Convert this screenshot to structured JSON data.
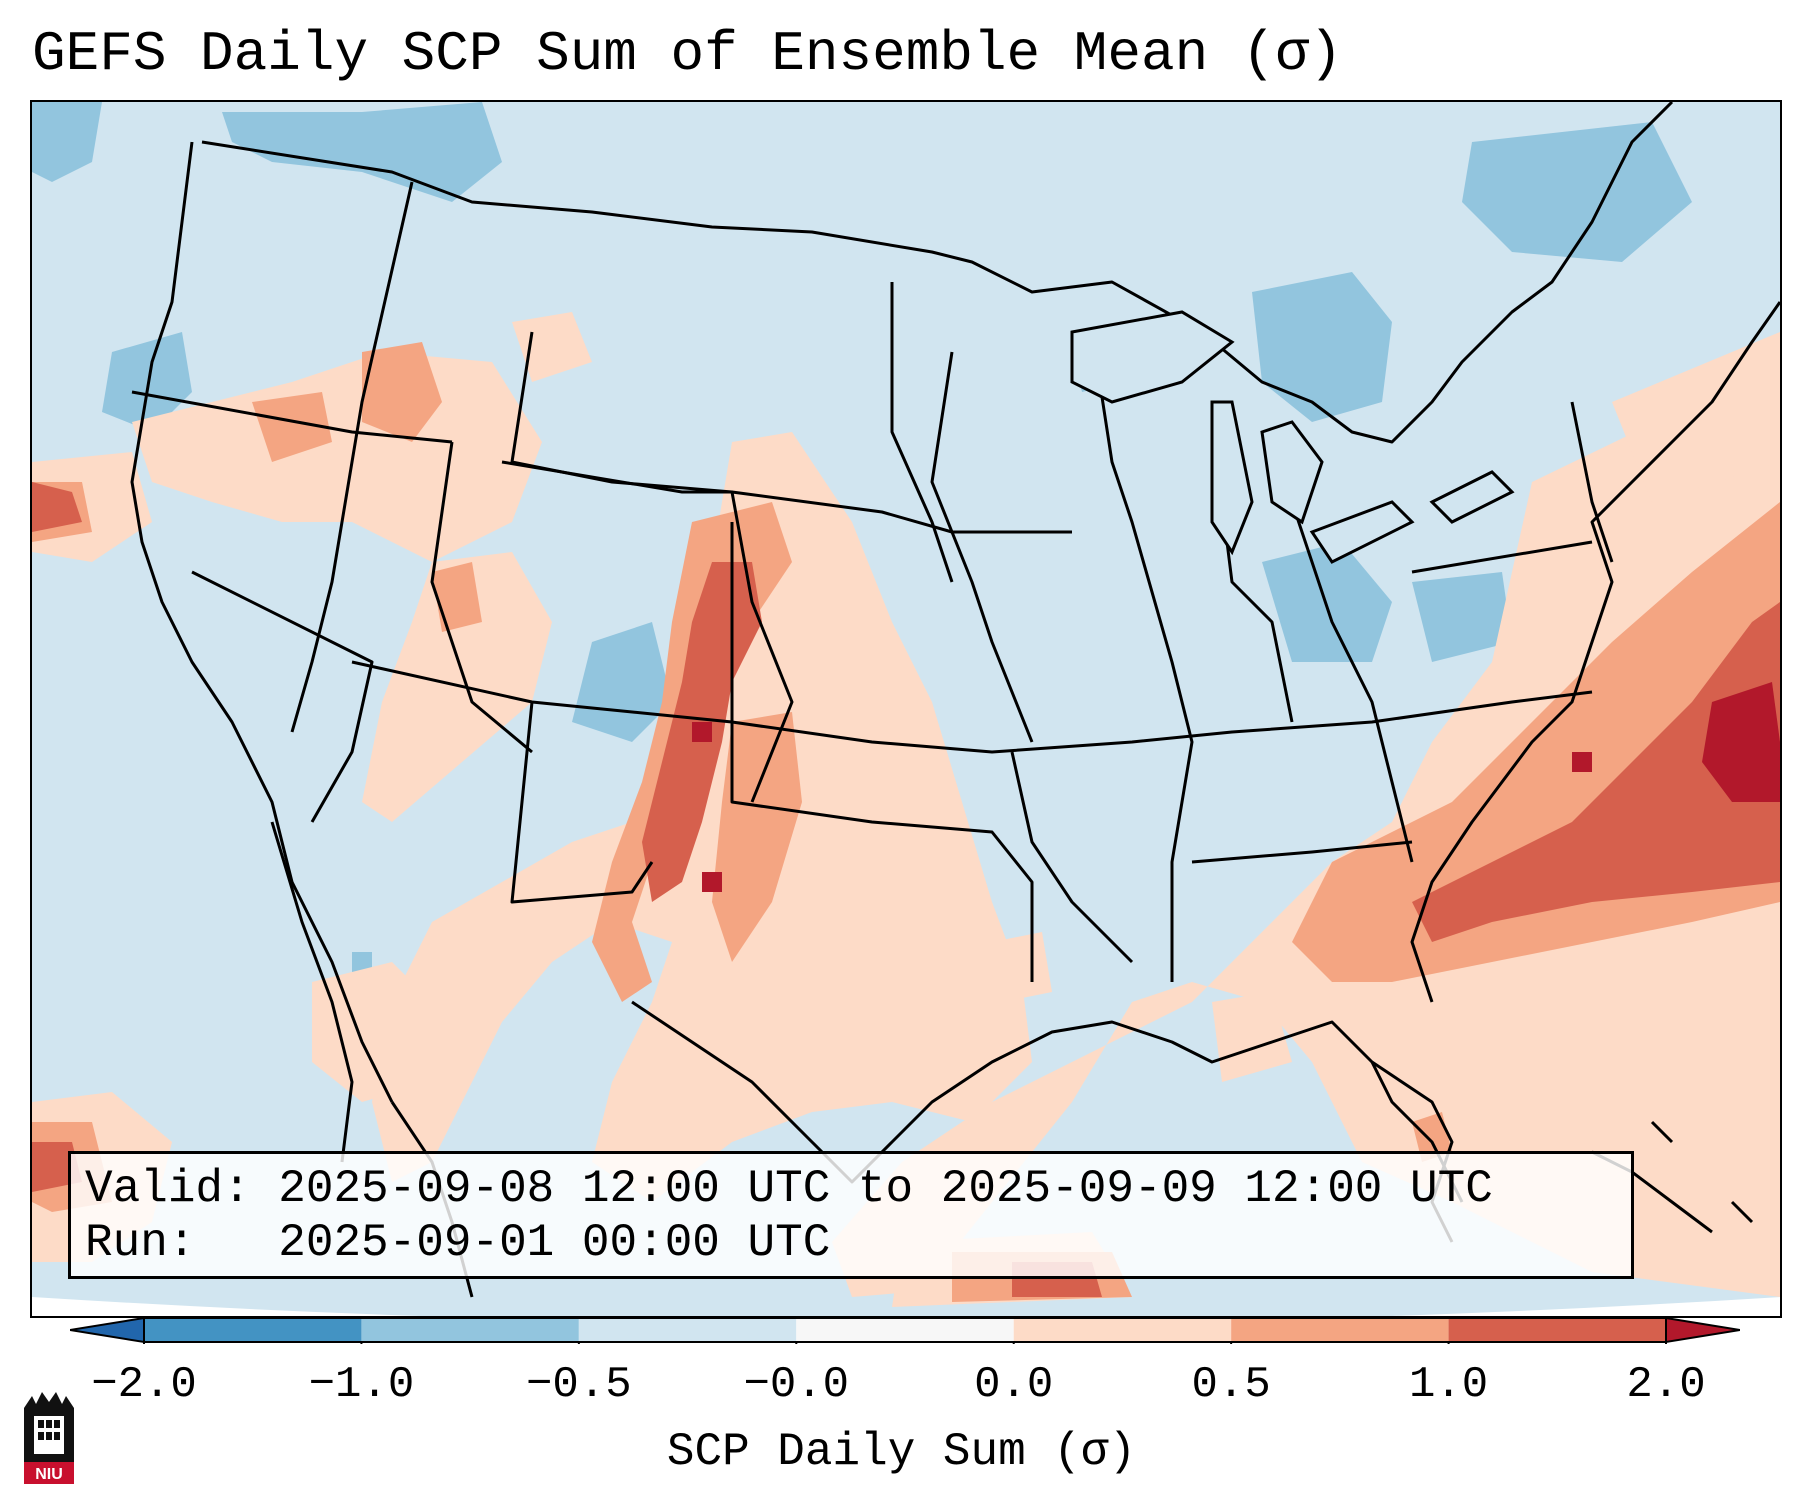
{
  "title": "GEFS Daily SCP Sum of Ensemble Mean (σ)",
  "info": {
    "valid_line": "Valid: 2025-09-08 12:00 UTC to 2025-09-09 12:00 UTC",
    "run_line": "Run:   2025-09-01 00:00 UTC"
  },
  "colorbar": {
    "label": "SCP Daily Sum (σ)",
    "ticks": [
      "−2.0",
      "−1.0",
      "−0.5",
      "−0.0",
      "0.0",
      "0.5",
      "1.0",
      "2.0"
    ],
    "bins": [
      {
        "from": "-inf",
        "to": -2.0,
        "color": "#2166ac"
      },
      {
        "from": -2.0,
        "to": -1.0,
        "color": "#4393c3"
      },
      {
        "from": -1.0,
        "to": -0.5,
        "color": "#92c5de"
      },
      {
        "from": -0.5,
        "to": -0.0,
        "color": "#d1e5f0"
      },
      {
        "from": -0.0,
        "to": 0.0,
        "color": "#f7f7f7"
      },
      {
        "from": 0.0,
        "to": 0.5,
        "color": "#fddbc7"
      },
      {
        "from": 0.5,
        "to": 1.0,
        "color": "#f4a582"
      },
      {
        "from": 1.0,
        "to": 2.0,
        "color": "#d6604d"
      },
      {
        "from": 2.0,
        "to": "inf",
        "color": "#b2182b"
      }
    ]
  },
  "logo": {
    "text": "NIU",
    "color": "#c8102e"
  },
  "colors": {
    "background_field": "#d1e5f0",
    "slight_positive": "#fddbc7",
    "moderate_positive": "#f4a582",
    "strong_positive": "#d6604d",
    "very_strong_positive": "#b2182b",
    "slight_negative": "#92c5de",
    "outline": "#000000"
  }
}
